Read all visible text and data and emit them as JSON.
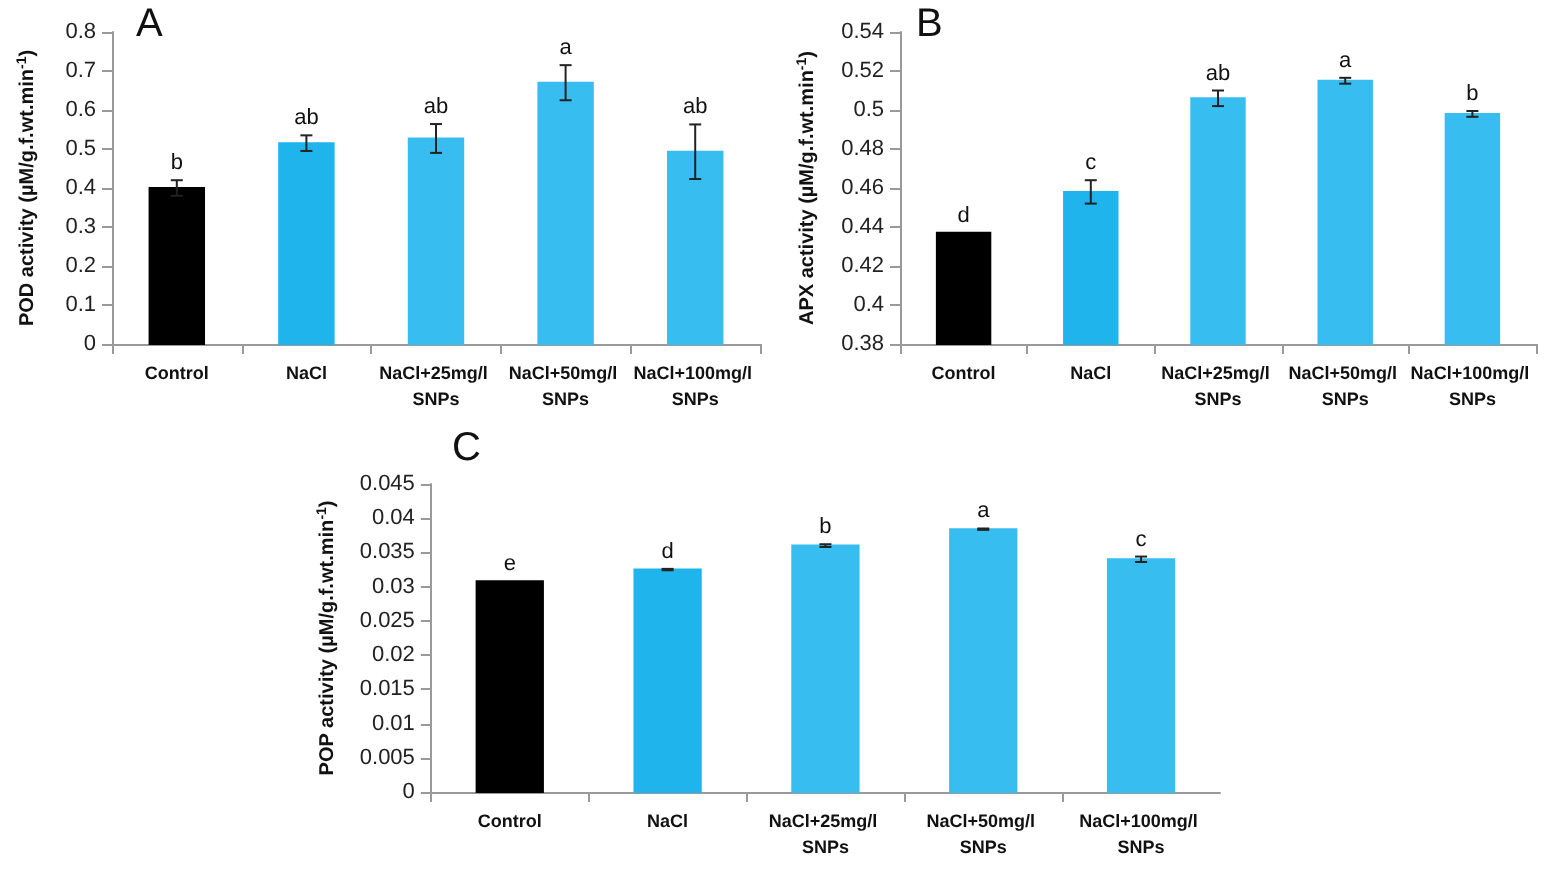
{
  "chart_data": [
    {
      "type": "bar",
      "title": "A",
      "ylabel": "POD activity (µM/g.f.wt.min$^{-1}$)",
      "categories": [
        "Control",
        "NaCl",
        "NaCl+25mg/l SNPs",
        "NaCl+50mg/l SNPs",
        "NaCl+100mg/l SNPs"
      ],
      "values": [
        0.4,
        0.515,
        0.527,
        0.67,
        0.493
      ],
      "colors": [
        "#000000",
        "#1fb4ec",
        "#38bdf0",
        "#38bdf0",
        "#38bdf0"
      ],
      "errors": [
        0.02,
        0.02,
        0.037,
        0.045,
        0.07
      ],
      "ylim": [
        0,
        0.8
      ],
      "yticks": [
        0,
        0.1,
        0.2,
        0.3,
        0.4,
        0.5,
        0.6,
        0.7,
        0.8
      ],
      "grid": false,
      "annotations": [
        {
          "text": "b",
          "x": "Control",
          "y": 0.42
        },
        {
          "text": "ab",
          "x": "NaCl",
          "y": 0.535
        },
        {
          "text": "ab",
          "x": "NaCl+25mg/l SNPs",
          "y": 0.564
        },
        {
          "text": "a",
          "x": "NaCl+50mg/l SNPs",
          "y": 0.715
        },
        {
          "text": "ab",
          "x": "NaCl+100mg/l SNPs",
          "y": 0.563
        }
      ]
    },
    {
      "type": "bar",
      "title": "B",
      "ylabel": "APX activity (µM/g.f.wt.min$^{-1}$)",
      "categories": [
        "Control",
        "NaCl",
        "NaCl+25mg/l SNPs",
        "NaCl+50mg/l SNPs",
        "NaCl+100mg/l SNPs"
      ],
      "values": [
        0.437,
        0.458,
        0.506,
        0.515,
        0.498
      ],
      "colors": [
        "#000000",
        "#1fb4ec",
        "#38bdf0",
        "#38bdf0",
        "#38bdf0"
      ],
      "errors": [
        null,
        0.006,
        0.004,
        0.0015,
        0.0015
      ],
      "ylim": [
        0.38,
        0.54
      ],
      "yticks": [
        0.38,
        0.4,
        0.42,
        0.44,
        0.46,
        0.48,
        0.5,
        0.52,
        0.54
      ],
      "grid": false,
      "annotations": [
        {
          "text": "d",
          "x": "Control",
          "y": 0.437
        },
        {
          "text": "c",
          "x": "NaCl",
          "y": 0.464
        },
        {
          "text": "ab",
          "x": "NaCl+25mg/l SNPs",
          "y": 0.51
        },
        {
          "text": "a",
          "x": "NaCl+50mg/l SNPs",
          "y": 0.5165
        },
        {
          "text": "b",
          "x": "NaCl+100mg/l SNPs",
          "y": 0.4995
        }
      ]
    },
    {
      "type": "bar",
      "title": "C",
      "ylabel": "POP activity (µM/g.f.wt.min$^{-1}$)",
      "categories": [
        "Control",
        "NaCl",
        "NaCl+25mg/l SNPs",
        "NaCl+50mg/l SNPs",
        "NaCl+100mg/l SNPs"
      ],
      "values": [
        0.0308,
        0.0325,
        0.036,
        0.0384,
        0.034
      ],
      "colors": [
        "#000000",
        "#1fb4ec",
        "#38bdf0",
        "#38bdf0",
        "#38bdf0"
      ],
      "errors": [
        null,
        0.0001,
        0.0002,
        0.0001,
        0.0004
      ],
      "ylim": [
        0,
        0.045
      ],
      "yticks": [
        0,
        0.005,
        0.01,
        0.015,
        0.02,
        0.025,
        0.03,
        0.035,
        0.04,
        0.045
      ],
      "grid": false,
      "annotations": [
        {
          "text": "e",
          "x": "Control",
          "y": 0.0308
        },
        {
          "text": "d",
          "x": "NaCl",
          "y": 0.0326
        },
        {
          "text": "b",
          "x": "NaCl+25mg/l SNPs",
          "y": 0.0362
        },
        {
          "text": "a",
          "x": "NaCl+50mg/l SNPs",
          "y": 0.0385
        },
        {
          "text": "c",
          "x": "NaCl+100mg/l SNPs",
          "y": 0.0344
        }
      ]
    }
  ]
}
